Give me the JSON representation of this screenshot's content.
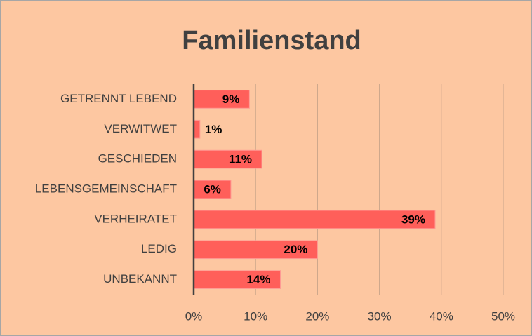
{
  "chart_data": {
    "type": "barh",
    "title": "Familienstand",
    "categories": [
      "GETRENNT LEBEND",
      "VERWITWET",
      "GESCHIEDEN",
      "LEBENSGEMEINSCHAFT",
      "VERHEIRATET",
      "LEDIG",
      "UNBEKANNT"
    ],
    "values": [
      9,
      1,
      11,
      6,
      39,
      20,
      14
    ],
    "value_labels": [
      "9%",
      "1%",
      "11%",
      "6%",
      "39%",
      "20%",
      "14%"
    ],
    "color": "#ff5f5a",
    "xlim": [
      0,
      50
    ],
    "xticks": [
      {
        "value": 0,
        "label": "0%"
      },
      {
        "value": 10,
        "label": "10%"
      },
      {
        "value": 20,
        "label": "20%"
      },
      {
        "value": 30,
        "label": "30%"
      },
      {
        "value": 40,
        "label": "40%"
      },
      {
        "value": 50,
        "label": "50%"
      }
    ],
    "grid": true
  }
}
